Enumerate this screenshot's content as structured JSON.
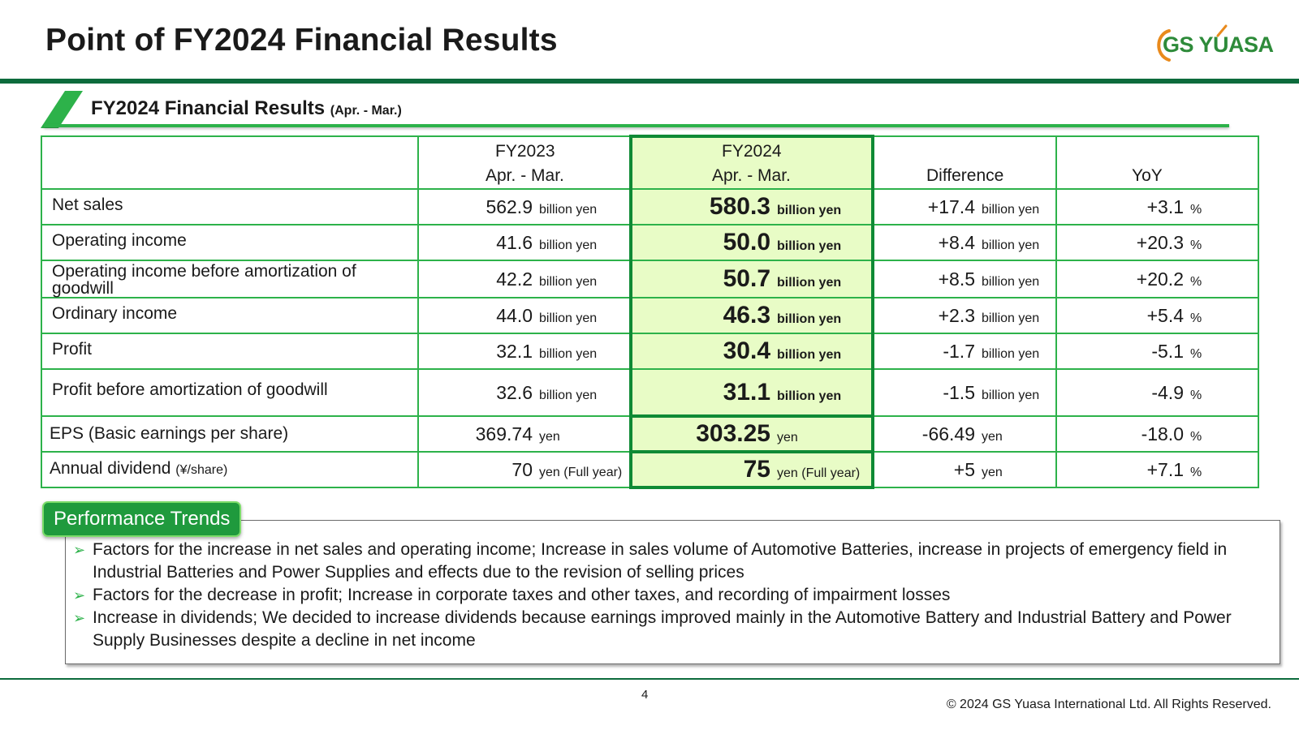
{
  "page": {
    "title": "Point of FY2024 Financial Results",
    "logo_text": "GS YUASA",
    "page_number": "4",
    "copyright": "© 2024 GS Yuasa International Ltd. All Rights Reserved."
  },
  "section": {
    "title": "FY2024 Financial Results",
    "subtitle": "(Apr. - Mar.)"
  },
  "colors": {
    "brand_green": "#2db24a",
    "dark_green": "#0c6b3c",
    "highlight": "#e8fcc6"
  },
  "table": {
    "headers": {
      "fy2023": {
        "year": "FY2023",
        "period": "Apr. - Mar."
      },
      "fy2024": {
        "year": "FY2024",
        "period": "Apr. - Mar."
      },
      "difference": "Difference",
      "yoy": "YoY"
    },
    "rows": [
      {
        "label": "Net sales",
        "fy2023": {
          "value": "562.9",
          "unit": "billion yen"
        },
        "fy2024": {
          "value": "580.3",
          "unit": "billion yen"
        },
        "difference": {
          "value": "+17.4",
          "unit": "billion yen"
        },
        "yoy": {
          "value": "+3.1",
          "unit": "%"
        }
      },
      {
        "label": "Operating income",
        "fy2023": {
          "value": "41.6",
          "unit": "billion yen"
        },
        "fy2024": {
          "value": "50.0",
          "unit": "billion yen"
        },
        "difference": {
          "value": "+8.4",
          "unit": "billion yen"
        },
        "yoy": {
          "value": "+20.3",
          "unit": "%"
        }
      },
      {
        "label": "Operating income before amortization of goodwill",
        "fy2023": {
          "value": "42.2",
          "unit": "billion yen"
        },
        "fy2024": {
          "value": "50.7",
          "unit": "billion yen"
        },
        "difference": {
          "value": "+8.5",
          "unit": "billion yen"
        },
        "yoy": {
          "value": "+20.2",
          "unit": "%"
        }
      },
      {
        "label": "Ordinary income",
        "fy2023": {
          "value": "44.0",
          "unit": "billion yen"
        },
        "fy2024": {
          "value": "46.3",
          "unit": "billion yen"
        },
        "difference": {
          "value": "+2.3",
          "unit": "billion yen"
        },
        "yoy": {
          "value": "+5.4",
          "unit": "%"
        }
      },
      {
        "label": "Profit",
        "fy2023": {
          "value": "32.1",
          "unit": "billion yen"
        },
        "fy2024": {
          "value": "30.4",
          "unit": "billion yen"
        },
        "difference": {
          "value": "-1.7",
          "unit": "billion yen"
        },
        "yoy": {
          "value": "-5.1",
          "unit": "%"
        }
      },
      {
        "label": "Profit before amortization of goodwill",
        "fy2023": {
          "value": "32.6",
          "unit": "billion yen"
        },
        "fy2024": {
          "value": "31.1",
          "unit": "billion yen"
        },
        "difference": {
          "value": "-1.5",
          "unit": "billion yen"
        },
        "yoy": {
          "value": "-4.9",
          "unit": "%"
        }
      },
      {
        "label": "EPS (Basic earnings per share)",
        "fy2023": {
          "value": "369.74",
          "unit": "yen"
        },
        "fy2024": {
          "value": "303.25",
          "unit": "yen"
        },
        "difference": {
          "value": "-66.49",
          "unit": "yen"
        },
        "yoy": {
          "value": "-18.0",
          "unit": "%"
        }
      },
      {
        "label": "Annual dividend",
        "label_note": "(¥/share)",
        "fy2023": {
          "value": "70",
          "unit": "yen (Full year)"
        },
        "fy2024": {
          "value": "75",
          "unit": "yen (Full year)"
        },
        "difference": {
          "value": "+5",
          "unit": "yen"
        },
        "yoy": {
          "value": "+7.1",
          "unit": "%"
        }
      }
    ]
  },
  "trends": {
    "badge": "Performance Trends",
    "bullets": [
      "Factors for the increase in net sales and operating income; Increase in sales volume of Automotive Batteries, increase in projects of emergency field in Industrial Batteries and Power Supplies and effects due to the revision of selling prices",
      "Factors for the decrease in profit; Increase in corporate taxes and other taxes, and recording of impairment losses",
      "Increase in dividends; We decided to increase dividends because earnings improved mainly in the Automotive Battery and Industrial Battery and Power Supply Businesses despite a decline in net income"
    ]
  }
}
